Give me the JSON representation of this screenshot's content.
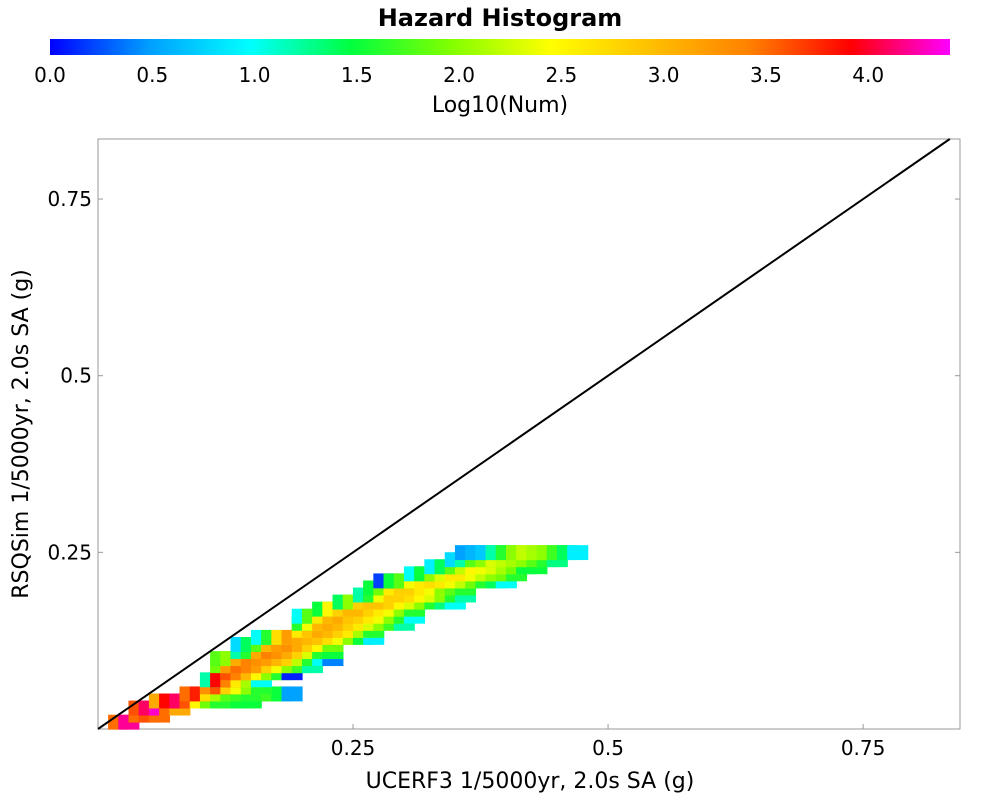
{
  "chart_data": {
    "type": "heatmap",
    "title": "Hazard Histogram",
    "colorbar": {
      "label": "Log10(Num)",
      "range": [
        0.0,
        4.4
      ],
      "ticks": [
        "0.0",
        "0.5",
        "1.0",
        "1.5",
        "2.0",
        "2.5",
        "3.0",
        "3.5",
        "4.0"
      ],
      "colors": [
        "#0000ff",
        "#00a0ff",
        "#00ffff",
        "#00ff40",
        "#80ff00",
        "#ffff00",
        "#ffc000",
        "#ff8000",
        "#ff0000",
        "#ff00ff"
      ]
    },
    "xlabel": "UCERF3 1/5000yr, 2.0s SA (g)",
    "ylabel": "RSQSim 1/5000yr, 2.0s SA (g)",
    "xlim": [
      0.0,
      0.845
    ],
    "ylim": [
      0.0,
      0.835
    ],
    "xticks": [
      "0.25",
      "0.5",
      "0.75"
    ],
    "yticks": [
      "0.25",
      "0.5",
      "0.75"
    ],
    "bin_width": 0.0202,
    "bin_height": 0.0204,
    "reference_line": "y = x",
    "bins_description": "Each bin: [x_center_g, y_center_g, log10_count]",
    "bins": [
      [
        0.02,
        0.01,
        3.5
      ],
      [
        0.03,
        0.01,
        4.2
      ],
      [
        0.04,
        0.02,
        3.5
      ],
      [
        0.05,
        0.02,
        3.6
      ],
      [
        0.06,
        0.02,
        3.5
      ],
      [
        0.04,
        0.03,
        3.6
      ],
      [
        0.05,
        0.03,
        4.1
      ],
      [
        0.06,
        0.03,
        4.3
      ],
      [
        0.07,
        0.03,
        3.5
      ],
      [
        0.08,
        0.03,
        3.1
      ],
      [
        0.06,
        0.04,
        3.1
      ],
      [
        0.07,
        0.04,
        3.9
      ],
      [
        0.08,
        0.04,
        4.1
      ],
      [
        0.09,
        0.04,
        3.6
      ],
      [
        0.1,
        0.04,
        2.5
      ],
      [
        0.11,
        0.04,
        1.9
      ],
      [
        0.12,
        0.04,
        1.6
      ],
      [
        0.13,
        0.04,
        1.6
      ],
      [
        0.14,
        0.04,
        1.5
      ],
      [
        0.15,
        0.04,
        1.5
      ],
      [
        0.09,
        0.05,
        3.5
      ],
      [
        0.1,
        0.05,
        3.8
      ],
      [
        0.11,
        0.05,
        2.7
      ],
      [
        0.12,
        0.05,
        2.1
      ],
      [
        0.13,
        0.05,
        1.8
      ],
      [
        0.14,
        0.05,
        1.7
      ],
      [
        0.15,
        0.05,
        1.6
      ],
      [
        0.16,
        0.05,
        1.6
      ],
      [
        0.17,
        0.05,
        1.7
      ],
      [
        0.18,
        0.05,
        1.5
      ],
      [
        0.19,
        0.05,
        0.5
      ],
      [
        0.11,
        0.06,
        3.3
      ],
      [
        0.12,
        0.06,
        3.6
      ],
      [
        0.13,
        0.06,
        2.8
      ],
      [
        0.14,
        0.06,
        2.4
      ],
      [
        0.15,
        0.06,
        2.0
      ],
      [
        0.16,
        0.06,
        1.6
      ],
      [
        0.11,
        0.07,
        1.2
      ],
      [
        0.12,
        0.07,
        3.9
      ],
      [
        0.13,
        0.07,
        3.4
      ],
      [
        0.14,
        0.07,
        2.6
      ],
      [
        0.15,
        0.07,
        2.1
      ],
      [
        0.16,
        0.07,
        1.0
      ],
      [
        0.13,
        0.08,
        3.6
      ],
      [
        0.14,
        0.08,
        3.4
      ],
      [
        0.15,
        0.08,
        3.0
      ],
      [
        0.16,
        0.08,
        2.5
      ],
      [
        0.17,
        0.08,
        2.0
      ],
      [
        0.18,
        0.08,
        1.6
      ],
      [
        0.19,
        0.08,
        0.1
      ],
      [
        0.12,
        0.09,
        1.9
      ],
      [
        0.13,
        0.09,
        3.2
      ],
      [
        0.14,
        0.09,
        3.5
      ],
      [
        0.15,
        0.09,
        3.4
      ],
      [
        0.16,
        0.09,
        3.2
      ],
      [
        0.17,
        0.09,
        2.8
      ],
      [
        0.18,
        0.09,
        2.4
      ],
      [
        0.19,
        0.09,
        2.0
      ],
      [
        0.2,
        0.09,
        1.7
      ],
      [
        0.21,
        0.09,
        1.2
      ],
      [
        0.12,
        0.1,
        1.8
      ],
      [
        0.13,
        0.1,
        2.0
      ],
      [
        0.14,
        0.1,
        3.1
      ],
      [
        0.15,
        0.1,
        3.4
      ],
      [
        0.16,
        0.1,
        3.3
      ],
      [
        0.17,
        0.1,
        3.2
      ],
      [
        0.18,
        0.1,
        3.0
      ],
      [
        0.19,
        0.1,
        2.8
      ],
      [
        0.2,
        0.1,
        2.2
      ],
      [
        0.21,
        0.1,
        1.6
      ],
      [
        0.22,
        0.1,
        1.0
      ],
      [
        0.23,
        0.1,
        0.4
      ],
      [
        0.14,
        0.11,
        1.2
      ],
      [
        0.15,
        0.11,
        1.6
      ],
      [
        0.16,
        0.11,
        3.1
      ],
      [
        0.17,
        0.11,
        3.4
      ],
      [
        0.18,
        0.11,
        3.3
      ],
      [
        0.19,
        0.11,
        3.1
      ],
      [
        0.2,
        0.11,
        2.8
      ],
      [
        0.21,
        0.11,
        2.3
      ],
      [
        0.22,
        0.11,
        1.6
      ],
      [
        0.23,
        0.11,
        1.5
      ],
      [
        0.14,
        0.12,
        0.8
      ],
      [
        0.15,
        0.12,
        1.4
      ],
      [
        0.16,
        0.12,
        1.8
      ],
      [
        0.17,
        0.12,
        3.0
      ],
      [
        0.18,
        0.12,
        3.2
      ],
      [
        0.19,
        0.12,
        3.3
      ],
      [
        0.2,
        0.12,
        3.1
      ],
      [
        0.21,
        0.12,
        2.8
      ],
      [
        0.22,
        0.12,
        2.5
      ],
      [
        0.23,
        0.12,
        1.9
      ],
      [
        0.16,
        0.13,
        1.0
      ],
      [
        0.17,
        0.13,
        1.6
      ],
      [
        0.18,
        0.13,
        2.7
      ],
      [
        0.19,
        0.13,
        3.2
      ],
      [
        0.2,
        0.13,
        3.1
      ],
      [
        0.21,
        0.13,
        3.0
      ],
      [
        0.22,
        0.13,
        2.9
      ],
      [
        0.23,
        0.13,
        2.7
      ],
      [
        0.24,
        0.13,
        2.4
      ],
      [
        0.25,
        0.13,
        2.0
      ],
      [
        0.26,
        0.13,
        1.5
      ],
      [
        0.27,
        0.13,
        0.9
      ],
      [
        0.2,
        0.14,
        2.6
      ],
      [
        0.21,
        0.14,
        2.9
      ],
      [
        0.22,
        0.14,
        3.1
      ],
      [
        0.23,
        0.14,
        3.0
      ],
      [
        0.24,
        0.14,
        2.8
      ],
      [
        0.25,
        0.14,
        2.6
      ],
      [
        0.26,
        0.14,
        2.1
      ],
      [
        0.27,
        0.14,
        1.6
      ],
      [
        0.2,
        0.15,
        1.6
      ],
      [
        0.21,
        0.15,
        2.4
      ],
      [
        0.22,
        0.15,
        3.0
      ],
      [
        0.23,
        0.15,
        3.1
      ],
      [
        0.24,
        0.15,
        3.0
      ],
      [
        0.25,
        0.15,
        2.8
      ],
      [
        0.26,
        0.15,
        2.6
      ],
      [
        0.27,
        0.15,
        2.3
      ],
      [
        0.28,
        0.15,
        2.0
      ],
      [
        0.29,
        0.15,
        1.7
      ],
      [
        0.3,
        0.15,
        1.2
      ],
      [
        0.2,
        0.16,
        1.0
      ],
      [
        0.21,
        0.16,
        1.8
      ],
      [
        0.22,
        0.16,
        2.6
      ],
      [
        0.23,
        0.16,
        3.0
      ],
      [
        0.24,
        0.16,
        3.1
      ],
      [
        0.25,
        0.16,
        2.9
      ],
      [
        0.26,
        0.16,
        2.8
      ],
      [
        0.27,
        0.16,
        2.6
      ],
      [
        0.28,
        0.16,
        2.4
      ],
      [
        0.29,
        0.16,
        2.0
      ],
      [
        0.3,
        0.16,
        1.6
      ],
      [
        0.31,
        0.16,
        1.0
      ],
      [
        0.22,
        0.17,
        1.5
      ],
      [
        0.23,
        0.17,
        2.5
      ],
      [
        0.24,
        0.17,
        2.8
      ],
      [
        0.25,
        0.17,
        3.0
      ],
      [
        0.26,
        0.17,
        3.0
      ],
      [
        0.27,
        0.17,
        2.8
      ],
      [
        0.28,
        0.17,
        2.6
      ],
      [
        0.29,
        0.17,
        2.4
      ],
      [
        0.3,
        0.17,
        2.0
      ],
      [
        0.31,
        0.17,
        1.6
      ],
      [
        0.24,
        0.18,
        1.4
      ],
      [
        0.25,
        0.18,
        2.0
      ],
      [
        0.26,
        0.18,
        2.8
      ],
      [
        0.27,
        0.18,
        2.9
      ],
      [
        0.28,
        0.18,
        2.9
      ],
      [
        0.29,
        0.18,
        2.8
      ],
      [
        0.3,
        0.18,
        2.5
      ],
      [
        0.31,
        0.18,
        2.3
      ],
      [
        0.32,
        0.18,
        2.0
      ],
      [
        0.33,
        0.18,
        1.6
      ],
      [
        0.34,
        0.18,
        1.3
      ],
      [
        0.35,
        0.18,
        1.0
      ],
      [
        0.26,
        0.19,
        1.2
      ],
      [
        0.27,
        0.19,
        1.6
      ],
      [
        0.28,
        0.19,
        2.4
      ],
      [
        0.29,
        0.19,
        2.8
      ],
      [
        0.3,
        0.19,
        2.8
      ],
      [
        0.31,
        0.19,
        2.7
      ],
      [
        0.32,
        0.19,
        2.5
      ],
      [
        0.33,
        0.19,
        2.3
      ],
      [
        0.34,
        0.19,
        2.0
      ],
      [
        0.35,
        0.19,
        1.6
      ],
      [
        0.36,
        0.19,
        1.2
      ],
      [
        0.27,
        0.2,
        1.5
      ],
      [
        0.28,
        0.2,
        1.9
      ],
      [
        0.29,
        0.2,
        2.6
      ],
      [
        0.3,
        0.2,
        2.8
      ],
      [
        0.31,
        0.2,
        2.8
      ],
      [
        0.32,
        0.2,
        2.6
      ],
      [
        0.33,
        0.2,
        2.4
      ],
      [
        0.34,
        0.2,
        2.0
      ],
      [
        0.35,
        0.2,
        1.8
      ],
      [
        0.36,
        0.2,
        1.6
      ],
      [
        0.28,
        0.21,
        0.2
      ],
      [
        0.29,
        0.21,
        1.5
      ],
      [
        0.3,
        0.21,
        1.8
      ],
      [
        0.31,
        0.21,
        2.4
      ],
      [
        0.32,
        0.21,
        2.6
      ],
      [
        0.33,
        0.21,
        2.7
      ],
      [
        0.34,
        0.21,
        2.6
      ],
      [
        0.35,
        0.21,
        2.4
      ],
      [
        0.36,
        0.21,
        2.2
      ],
      [
        0.37,
        0.21,
        1.9
      ],
      [
        0.38,
        0.21,
        1.6
      ],
      [
        0.39,
        0.21,
        1.4
      ],
      [
        0.4,
        0.21,
        1.0
      ],
      [
        0.31,
        0.22,
        1.0
      ],
      [
        0.32,
        0.22,
        1.5
      ],
      [
        0.33,
        0.22,
        2.0
      ],
      [
        0.34,
        0.22,
        2.3
      ],
      [
        0.35,
        0.22,
        2.6
      ],
      [
        0.36,
        0.22,
        2.6
      ],
      [
        0.37,
        0.22,
        2.4
      ],
      [
        0.38,
        0.22,
        2.2
      ],
      [
        0.39,
        0.22,
        2.0
      ],
      [
        0.4,
        0.22,
        1.9
      ],
      [
        0.41,
        0.22,
        1.6
      ],
      [
        0.33,
        0.23,
        0.9
      ],
      [
        0.34,
        0.23,
        1.4
      ],
      [
        0.35,
        0.23,
        1.8
      ],
      [
        0.36,
        0.23,
        2.2
      ],
      [
        0.37,
        0.23,
        2.5
      ],
      [
        0.38,
        0.23,
        2.4
      ],
      [
        0.39,
        0.23,
        2.3
      ],
      [
        0.4,
        0.23,
        2.1
      ],
      [
        0.41,
        0.23,
        1.9
      ],
      [
        0.42,
        0.23,
        1.5
      ],
      [
        0.43,
        0.23,
        1.5
      ],
      [
        0.35,
        0.24,
        0.8
      ],
      [
        0.36,
        0.24,
        1.2
      ],
      [
        0.37,
        0.24,
        1.8
      ],
      [
        0.38,
        0.24,
        2.0
      ],
      [
        0.39,
        0.24,
        2.3
      ],
      [
        0.4,
        0.24,
        2.2
      ],
      [
        0.41,
        0.24,
        2.1
      ],
      [
        0.42,
        0.24,
        2.0
      ],
      [
        0.43,
        0.24,
        1.8
      ],
      [
        0.44,
        0.24,
        1.6
      ],
      [
        0.45,
        0.24,
        1.3
      ],
      [
        0.36,
        0.25,
        0.5
      ],
      [
        0.37,
        0.25,
        0.6
      ],
      [
        0.38,
        0.25,
        0.7
      ],
      [
        0.39,
        0.25,
        1.2
      ],
      [
        0.4,
        0.25,
        1.6
      ],
      [
        0.41,
        0.25,
        2.0
      ],
      [
        0.42,
        0.25,
        2.2
      ],
      [
        0.43,
        0.25,
        2.1
      ],
      [
        0.44,
        0.25,
        2.0
      ],
      [
        0.45,
        0.25,
        1.7
      ],
      [
        0.46,
        0.25,
        1.4
      ],
      [
        0.47,
        0.25,
        0.9
      ]
    ]
  }
}
